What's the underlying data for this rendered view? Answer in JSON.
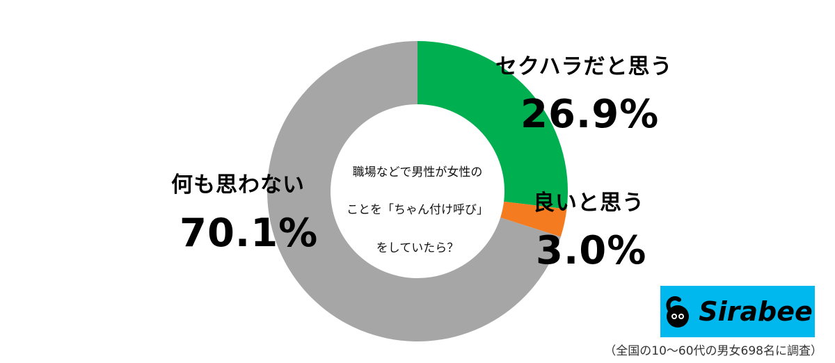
{
  "chart_data": {
    "type": "pie",
    "title": "職場などで男性が女性のことを「ちゃん付け呼び」をしていたら？",
    "slices": [
      {
        "label": "セクハラだと思う",
        "value": 26.9,
        "value_label": "26.9%",
        "color": "#00b050"
      },
      {
        "label": "良いと思う",
        "value": 3.0,
        "value_label": "3.0%",
        "color": "#f47b20"
      },
      {
        "label": "何も思わない",
        "value": 70.1,
        "value_label": "70.1%",
        "color": "#a6a6a6"
      }
    ]
  },
  "center_text": [
    "職場などで男性が女性の",
    "ことを「ちゃん付け呼び」",
    "をしていたら？"
  ],
  "logo": {
    "text": "Sirabee",
    "color": "#00b7ee"
  },
  "footnote": "（全国の10〜60代の男女698名に調査）"
}
